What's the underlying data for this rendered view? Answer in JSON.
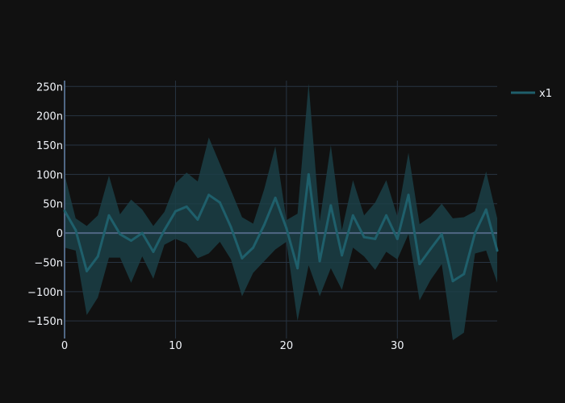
{
  "chart_data": {
    "type": "line",
    "title": "",
    "xlabel": "",
    "ylabel": "",
    "xlim": [
      0,
      39
    ],
    "ylim": [
      -180,
      260
    ],
    "grid": true,
    "legend_position": "top-right",
    "x_ticks": [
      0,
      10,
      20,
      30
    ],
    "x_tick_labels": [
      "0",
      "10",
      "20",
      "30"
    ],
    "y_ticks": [
      -150,
      -100,
      -50,
      0,
      50,
      100,
      150,
      200,
      250
    ],
    "y_tick_labels": [
      "−150n",
      "−100n",
      "−50n",
      "0",
      "50n",
      "100n",
      "150n",
      "200n",
      "250n"
    ],
    "y_unit_scale": "1e-9",
    "series": [
      {
        "name": "x1",
        "color": "#1f5f6b",
        "band_color": "#1b3f47",
        "x": [
          0,
          1,
          2,
          3,
          4,
          5,
          6,
          7,
          8,
          9,
          10,
          11,
          12,
          13,
          14,
          15,
          16,
          17,
          18,
          19,
          20,
          21,
          22,
          23,
          24,
          25,
          26,
          27,
          28,
          29,
          30,
          31,
          32,
          33,
          34,
          35,
          36,
          37,
          38,
          39
        ],
        "values": [
          38,
          5,
          -65,
          -40,
          30,
          -2,
          -13,
          0,
          -32,
          5,
          37,
          45,
          23,
          65,
          52,
          10,
          -43,
          -25,
          14,
          60,
          8,
          -60,
          100,
          -48,
          47,
          -38,
          30,
          -7,
          -10,
          30,
          -10,
          65,
          -53,
          -27,
          -2,
          -82,
          -70,
          0,
          40,
          -30
        ],
        "upper": [
          100,
          25,
          12,
          30,
          98,
          32,
          57,
          40,
          12,
          36,
          85,
          103,
          88,
          163,
          118,
          73,
          27,
          16,
          75,
          148,
          22,
          33,
          255,
          20,
          150,
          5,
          90,
          30,
          52,
          90,
          28,
          137,
          15,
          28,
          50,
          25,
          27,
          37,
          105,
          25
        ],
        "lower": [
          -25,
          -30,
          -140,
          -110,
          -42,
          -42,
          -85,
          -40,
          -78,
          -20,
          -10,
          -18,
          -43,
          -35,
          -15,
          -45,
          -108,
          -68,
          -48,
          -28,
          -15,
          -150,
          -55,
          -108,
          -60,
          -97,
          -25,
          -40,
          -63,
          -32,
          -45,
          -2,
          -115,
          -80,
          -53,
          -183,
          -170,
          -35,
          -30,
          -85
        ]
      }
    ]
  },
  "legend": {
    "items": [
      {
        "label": "x1"
      }
    ]
  }
}
